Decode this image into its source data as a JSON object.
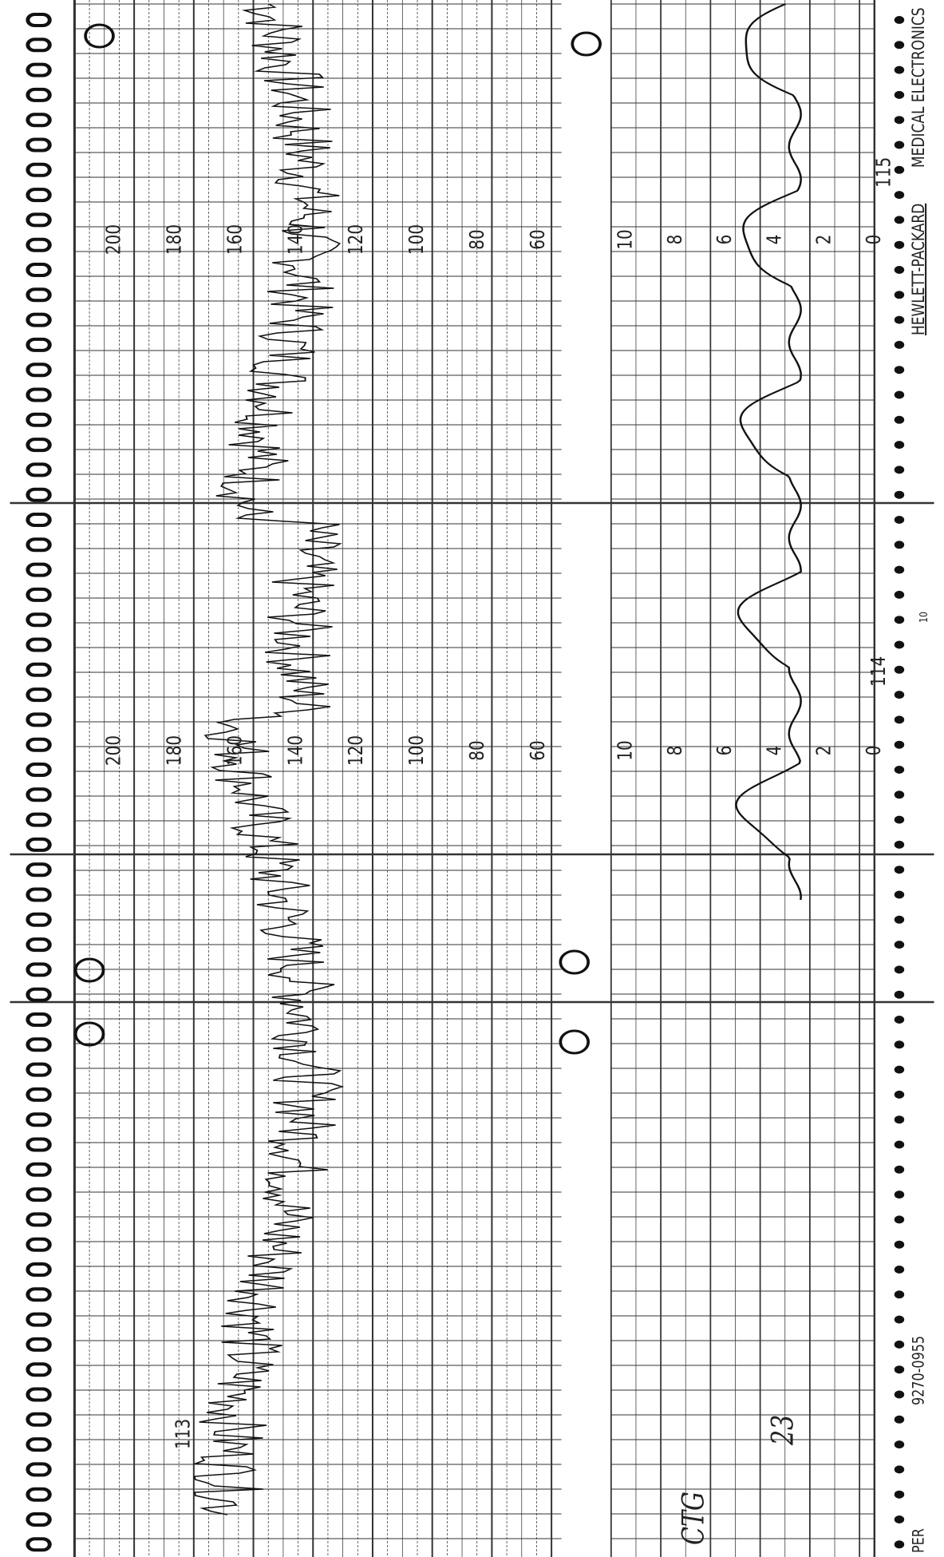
{
  "panels": [
    {
      "fhr_scale": [
        "200",
        "180",
        "160",
        "140",
        "120",
        "100",
        "80",
        "60"
      ],
      "uc_scale": [
        "10",
        "8",
        "6",
        "4",
        "2",
        "0"
      ]
    },
    {
      "fhr_scale": [
        "200",
        "180",
        "160",
        "140",
        "120",
        "100",
        "80",
        "60"
      ],
      "uc_scale": [
        "10",
        "8",
        "6",
        "4",
        "2",
        "0"
      ]
    }
  ],
  "page_numbers": [
    "113",
    "114",
    "115"
  ],
  "brand": "HEWLETT-PACKARD",
  "division": "MEDICAL ELECTRONICS",
  "paper_code": "9270-0955",
  "paper_label": "PER",
  "marker": "10",
  "annotations": [
    "CTG",
    "23"
  ]
}
